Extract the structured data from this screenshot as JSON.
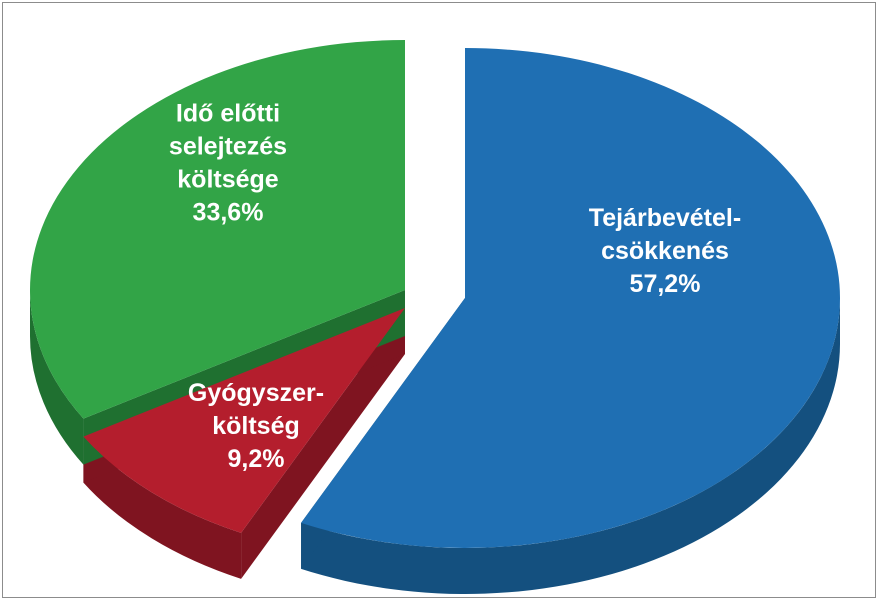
{
  "chart_data": {
    "type": "pie",
    "style": "3d-exploded",
    "title": "",
    "slices": [
      {
        "label": [
          "Tejárbevétel-",
          "csökkenés"
        ],
        "value_label": "57,2%",
        "value": 57.2,
        "color": "#1f6fb3",
        "side_color": "#14507f"
      },
      {
        "label": [
          "Gyógyszer-",
          "költség"
        ],
        "value_label": "9,2%",
        "value": 9.2,
        "color": "#b41e2d",
        "side_color": "#7f1420"
      },
      {
        "label": [
          "Idő előtti",
          "selejtezés",
          "költsége"
        ],
        "value_label": "33,6%",
        "value": 33.6,
        "color": "#32a447",
        "side_color": "#1f7030"
      }
    ],
    "legend": "none"
  }
}
